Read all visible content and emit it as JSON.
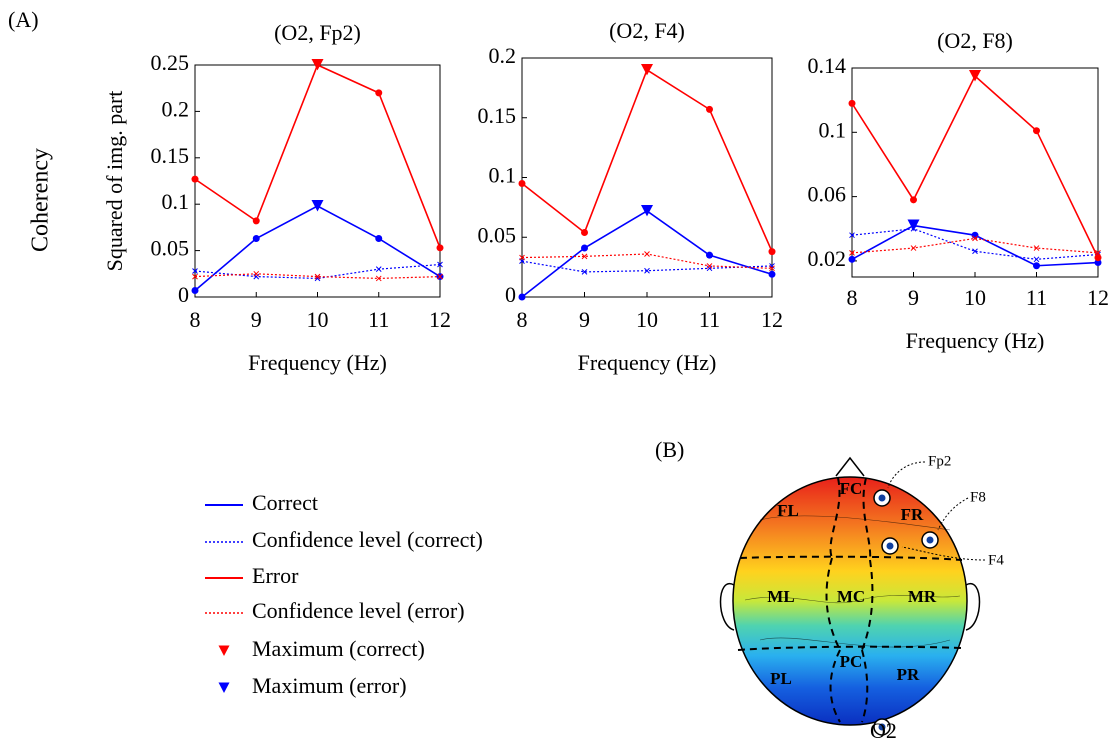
{
  "panel_labels": [
    "(A)",
    "(B)"
  ],
  "outer_ylabel": "Coherency",
  "chart_data": [
    {
      "type": "line",
      "title": "(O2, Fp2)",
      "ylabel": "Squared of img. part",
      "xlabel": "Frequency (Hz)",
      "x": [
        8,
        9,
        10,
        11,
        12
      ],
      "xlim": [
        8,
        12
      ],
      "xticks": [
        8,
        9,
        10,
        11,
        12
      ],
      "ylim": [
        0,
        0.25
      ],
      "yticks": [
        0,
        0.05,
        0.1,
        0.15,
        0.2,
        0.25
      ],
      "series": [
        {
          "name": "Correct",
          "color": "#0000ff",
          "style": "solid",
          "marker": "o",
          "mark_max": true,
          "values": [
            0.007,
            0.063,
            0.098,
            0.063,
            0.022
          ]
        },
        {
          "name": "Confidence level (correct)",
          "color": "#0000ff",
          "style": "dotted",
          "marker": "x",
          "values": [
            0.028,
            0.022,
            0.02,
            0.03,
            0.035
          ]
        },
        {
          "name": "Error",
          "color": "#ff0000",
          "style": "solid",
          "marker": "o",
          "mark_max": true,
          "values": [
            0.127,
            0.082,
            0.25,
            0.22,
            0.053
          ]
        },
        {
          "name": "Confidence level (error)",
          "color": "#ff0000",
          "style": "dotted",
          "marker": "x",
          "values": [
            0.022,
            0.025,
            0.022,
            0.02,
            0.022
          ]
        }
      ]
    },
    {
      "type": "line",
      "title": "(O2, F4)",
      "xlabel": "Frequency (Hz)",
      "x": [
        8,
        9,
        10,
        11,
        12
      ],
      "xlim": [
        8,
        12
      ],
      "xticks": [
        8,
        9,
        10,
        11,
        12
      ],
      "ylim": [
        0,
        0.2
      ],
      "yticks": [
        0,
        0.05,
        0.1,
        0.15,
        0.2
      ],
      "series": [
        {
          "name": "Correct",
          "color": "#0000ff",
          "style": "solid",
          "marker": "o",
          "mark_max": true,
          "values": [
            0.0,
            0.041,
            0.072,
            0.035,
            0.019
          ]
        },
        {
          "name": "Confidence level (correct)",
          "color": "#0000ff",
          "style": "dotted",
          "marker": "x",
          "values": [
            0.03,
            0.021,
            0.022,
            0.024,
            0.026
          ]
        },
        {
          "name": "Error",
          "color": "#ff0000",
          "style": "solid",
          "marker": "o",
          "mark_max": true,
          "values": [
            0.095,
            0.054,
            0.19,
            0.157,
            0.038
          ]
        },
        {
          "name": "Confidence level (error)",
          "color": "#ff0000",
          "style": "dotted",
          "marker": "x",
          "values": [
            0.033,
            0.034,
            0.036,
            0.026,
            0.024
          ]
        }
      ]
    },
    {
      "type": "line",
      "title": "(O2, F8)",
      "xlabel": "Frequency (Hz)",
      "x": [
        8,
        9,
        10,
        11,
        12
      ],
      "xlim": [
        8,
        12
      ],
      "xticks": [
        8,
        9,
        10,
        11,
        12
      ],
      "ylim": [
        0.01,
        0.14
      ],
      "yticks": [
        0.02,
        0.06,
        0.1,
        0.14
      ],
      "series": [
        {
          "name": "Correct",
          "color": "#0000ff",
          "style": "solid",
          "marker": "o",
          "mark_max": true,
          "values": [
            0.021,
            0.042,
            0.036,
            0.017,
            0.019
          ]
        },
        {
          "name": "Confidence level (correct)",
          "color": "#0000ff",
          "style": "dotted",
          "marker": "x",
          "values": [
            0.036,
            0.04,
            0.026,
            0.021,
            0.024
          ]
        },
        {
          "name": "Error",
          "color": "#ff0000",
          "style": "solid",
          "marker": "o",
          "mark_max": true,
          "values": [
            0.118,
            0.058,
            0.135,
            0.101,
            0.022
          ]
        },
        {
          "name": "Confidence level (error)",
          "color": "#ff0000",
          "style": "dotted",
          "marker": "x",
          "values": [
            0.025,
            0.028,
            0.034,
            0.028,
            0.025
          ]
        }
      ]
    }
  ],
  "legend_markers": [
    {
      "label": "Maximum (correct)",
      "color": "#ff0000"
    },
    {
      "label": "Maximum (error)",
      "color": "#0000ff"
    }
  ],
  "head": {
    "regions": [
      "FC",
      "FL",
      "FR",
      "ML",
      "MC",
      "MR",
      "PL",
      "PC",
      "PR"
    ],
    "electrodes": [
      "Fp2",
      "F8",
      "F4",
      "O2"
    ]
  }
}
